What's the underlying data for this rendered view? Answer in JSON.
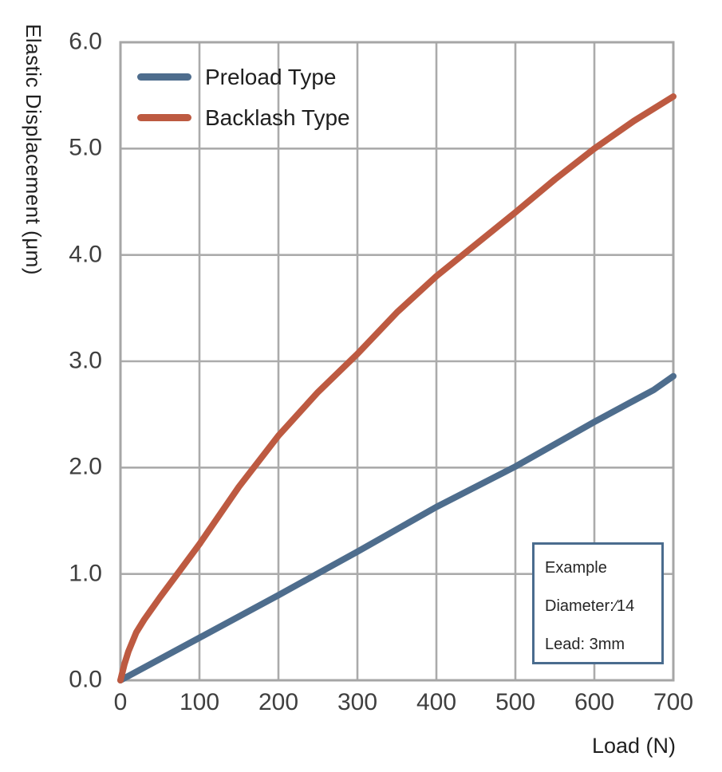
{
  "chart_data": {
    "type": "line",
    "title": "",
    "xlabel": "Load (N)",
    "ylabel": "Elastic Displacement (μm)",
    "xlim": [
      0,
      700
    ],
    "ylim": [
      0,
      6.0
    ],
    "grid": true,
    "legend_position": "inside-top-left",
    "x_ticks": [
      0,
      100,
      200,
      300,
      400,
      500,
      600,
      700
    ],
    "x_tick_labels": [
      "0",
      "100",
      "200",
      "300",
      "400",
      "500",
      "600",
      "700"
    ],
    "y_ticks": [
      0,
      1,
      2,
      3,
      4,
      5,
      6
    ],
    "y_tick_labels": [
      "0.0",
      "1.0",
      "2.0",
      "3.0",
      "4.0",
      "5.0",
      "6.0"
    ],
    "series": [
      {
        "name": "Preload Type",
        "color": "#4e6d8d",
        "points": [
          [
            0,
            0
          ],
          [
            100,
            0.4
          ],
          [
            200,
            0.8
          ],
          [
            300,
            1.21
          ],
          [
            400,
            1.63
          ],
          [
            500,
            2.01
          ],
          [
            600,
            2.43
          ],
          [
            650,
            2.63
          ],
          [
            675,
            2.73
          ],
          [
            700,
            2.86
          ]
        ]
      },
      {
        "name": "Backlash Type",
        "color": "#bd5a41",
        "points": [
          [
            0,
            0
          ],
          [
            5,
            0.15
          ],
          [
            10,
            0.27
          ],
          [
            20,
            0.45
          ],
          [
            30,
            0.57
          ],
          [
            50,
            0.78
          ],
          [
            75,
            1.03
          ],
          [
            100,
            1.28
          ],
          [
            150,
            1.82
          ],
          [
            200,
            2.3
          ],
          [
            250,
            2.71
          ],
          [
            300,
            3.07
          ],
          [
            350,
            3.46
          ],
          [
            400,
            3.8
          ],
          [
            450,
            4.1
          ],
          [
            500,
            4.4
          ],
          [
            550,
            4.71
          ],
          [
            600,
            5.0
          ],
          [
            650,
            5.26
          ],
          [
            700,
            5.49
          ]
        ]
      }
    ],
    "annotation_box": {
      "lines": [
        "Example",
        "Diameter:∕14",
        "Lead: 3mm"
      ],
      "border_color": "#4a6c8e"
    }
  },
  "style": {
    "grid_color": "#ababab",
    "border_color": "#a6a6a6",
    "tick_label_color": "#3f3f3f",
    "axis_title_color": "#1f1f1f",
    "background": "#ffffff",
    "line_width": 8
  }
}
